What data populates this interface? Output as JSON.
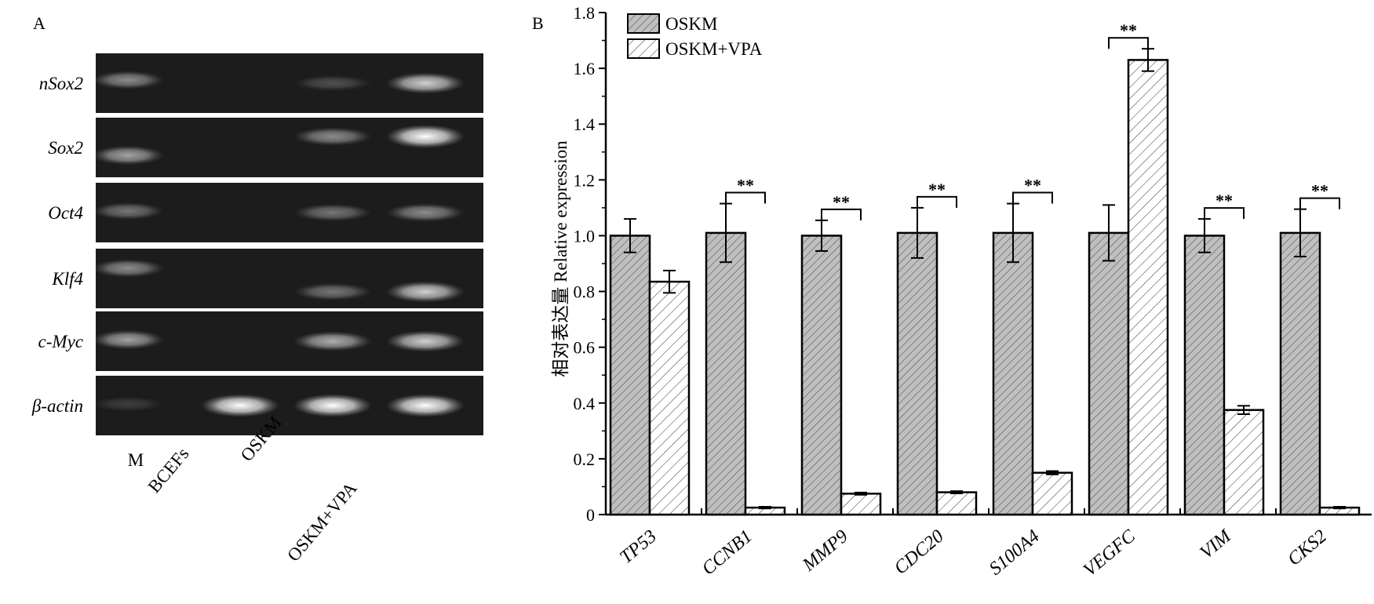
{
  "panel_a": {
    "letter": "A",
    "gene_labels": [
      "nSox2",
      "Sox2",
      "Oct4",
      "Klf4",
      "c-Myc",
      "β-actin"
    ],
    "lane_labels": [
      "M",
      "BCEFs",
      "OSKM",
      "OSKM+VPA"
    ],
    "band_intensity": [
      [
        0.45,
        0.0,
        0.18,
        0.75
      ],
      [
        0.55,
        0.0,
        0.45,
        1.0
      ],
      [
        0.35,
        0.0,
        0.35,
        0.45
      ],
      [
        0.45,
        0.0,
        0.35,
        0.75
      ],
      [
        0.55,
        0.0,
        0.6,
        0.75
      ],
      [
        0.1,
        0.95,
        0.95,
        0.95
      ]
    ]
  },
  "panel_b": {
    "letter": "B"
  },
  "chart_data": {
    "type": "bar",
    "categories": [
      "TP53",
      "CCNB1",
      "MMP9",
      "CDC20",
      "S100A4",
      "VEGFC",
      "VIM",
      "CKS2"
    ],
    "series": [
      {
        "name": "OSKM",
        "values": [
          1.0,
          1.01,
          1.0,
          1.01,
          1.01,
          1.01,
          1.0,
          1.01
        ],
        "errors": [
          0.06,
          0.105,
          0.055,
          0.09,
          0.105,
          0.1,
          0.06,
          0.085
        ],
        "pattern": "dense-diagonal",
        "color": "#bfbfbf"
      },
      {
        "name": "OSKM+VPA",
        "values": [
          0.835,
          0.025,
          0.075,
          0.08,
          0.15,
          1.63,
          0.375,
          0.025
        ],
        "errors": [
          0.04,
          0.003,
          0.004,
          0.004,
          0.006,
          0.04,
          0.015,
          0.003
        ],
        "pattern": "sparse-diagonal",
        "color": "#ffffff"
      }
    ],
    "significance": [
      "",
      "**",
      "**",
      "**",
      "**",
      "**",
      "**",
      "**"
    ],
    "ylabel": "相对表达量 Relative expression",
    "xlabel": "",
    "ylim": [
      0,
      1.8
    ],
    "yticks": [
      "0",
      "0.2",
      "0.4",
      "0.6",
      "0.8",
      "1.0",
      "1.2",
      "1.4",
      "1.6",
      "1.8"
    ],
    "grid": false,
    "legend_position": "top-left"
  }
}
